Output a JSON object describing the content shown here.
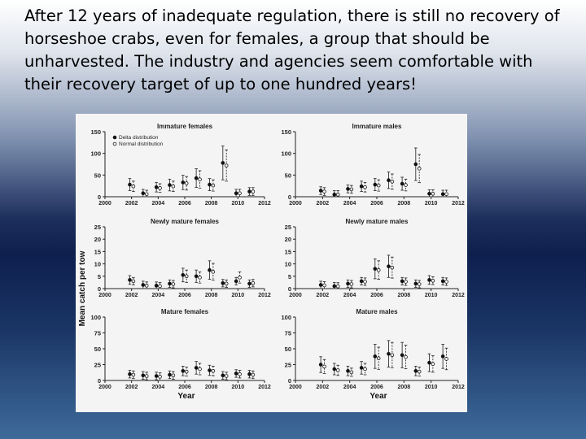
{
  "slide": {
    "text": "After 12 years of inadequate regulation, there is still no recovery of horseshoe crabs, even for  females, a group that should be unharvested.  The industry and agencies seem comfortable with their recovery target of up to one hundred years!"
  },
  "figure": {
    "ylabel": "Mean catch per tow",
    "xlabel": "Year",
    "legend": [
      "Delta distribution",
      "Normal distribution"
    ]
  },
  "chart_data": [
    {
      "type": "scatter",
      "title": "Immature females",
      "ylim": [
        0,
        150
      ],
      "yticks": [
        0,
        50,
        100,
        150
      ],
      "xticks": [
        2000,
        2002,
        2004,
        2006,
        2008,
        2010,
        2012
      ],
      "legend_position": "top-left",
      "series": [
        {
          "name": "Delta distribution",
          "x": [
            2002,
            2003,
            2004,
            2005,
            2006,
            2007,
            2008,
            2009,
            2010,
            2011
          ],
          "y": [
            28,
            8,
            22,
            27,
            33,
            43,
            28,
            78,
            8,
            12
          ]
        },
        {
          "name": "Normal distribution",
          "x": [
            2002,
            2003,
            2004,
            2005,
            2006,
            2007,
            2008,
            2009,
            2010,
            2011
          ],
          "y": [
            24,
            6,
            20,
            24,
            31,
            40,
            26,
            72,
            8,
            12
          ]
        }
      ]
    },
    {
      "type": "scatter",
      "title": "Immature males",
      "ylim": [
        0,
        150
      ],
      "yticks": [
        0,
        50,
        100,
        150
      ],
      "xticks": [
        2000,
        2002,
        2004,
        2006,
        2008,
        2010,
        2012
      ],
      "series": [
        {
          "name": "Delta distribution",
          "x": [
            2002,
            2003,
            2004,
            2005,
            2006,
            2007,
            2008,
            2009,
            2010,
            2011
          ],
          "y": [
            14,
            5,
            18,
            24,
            28,
            38,
            30,
            75,
            7,
            6
          ]
        },
        {
          "name": "Normal distribution",
          "x": [
            2002,
            2003,
            2004,
            2005,
            2006,
            2007,
            2008,
            2009,
            2010,
            2011
          ],
          "y": [
            12,
            5,
            17,
            22,
            26,
            35,
            27,
            65,
            7,
            6
          ]
        }
      ]
    },
    {
      "type": "scatter",
      "title": "Newly mature females",
      "ylim": [
        0,
        25
      ],
      "yticks": [
        0,
        5,
        10,
        15,
        20,
        25
      ],
      "xticks": [
        2000,
        2002,
        2004,
        2006,
        2008,
        2010,
        2012
      ],
      "series": [
        {
          "name": "Delta distribution",
          "x": [
            2002,
            2003,
            2004,
            2005,
            2006,
            2007,
            2008,
            2009,
            2010,
            2011
          ],
          "y": [
            3.5,
            1.5,
            1.2,
            2.0,
            5.5,
            5.0,
            7.5,
            2.2,
            3.0,
            2.0
          ]
        },
        {
          "name": "Normal distribution",
          "x": [
            2002,
            2003,
            2004,
            2005,
            2006,
            2007,
            2008,
            2009,
            2010,
            2011
          ],
          "y": [
            3.0,
            1.2,
            1.0,
            1.8,
            5.0,
            4.5,
            6.8,
            2.0,
            4.5,
            2.2
          ]
        }
      ]
    },
    {
      "type": "scatter",
      "title": "Newly mature males",
      "ylim": [
        0,
        25
      ],
      "yticks": [
        0,
        5,
        10,
        15,
        20,
        25
      ],
      "xticks": [
        2000,
        2002,
        2004,
        2006,
        2008,
        2010,
        2012
      ],
      "series": [
        {
          "name": "Delta distribution",
          "x": [
            2002,
            2003,
            2004,
            2005,
            2006,
            2007,
            2008,
            2009,
            2010,
            2011
          ],
          "y": [
            1.5,
            1.0,
            2.0,
            3.0,
            8.0,
            9.0,
            3.0,
            2.0,
            3.5,
            3.0
          ]
        },
        {
          "name": "Normal distribution",
          "x": [
            2002,
            2003,
            2004,
            2005,
            2006,
            2007,
            2008,
            2009,
            2010,
            2011
          ],
          "y": [
            1.3,
            0.9,
            1.8,
            2.8,
            7.5,
            8.5,
            2.8,
            1.8,
            3.2,
            2.8
          ]
        }
      ]
    },
    {
      "type": "scatter",
      "title": "Mature females",
      "ylim": [
        0,
        100
      ],
      "yticks": [
        0,
        25,
        50,
        75,
        100
      ],
      "xticks": [
        2000,
        2002,
        2004,
        2006,
        2008,
        2010,
        2012
      ],
      "series": [
        {
          "name": "Delta distribution",
          "x": [
            2002,
            2003,
            2004,
            2005,
            2006,
            2007,
            2008,
            2009,
            2010,
            2011
          ],
          "y": [
            10,
            8,
            7,
            9,
            15,
            20,
            16,
            8,
            11,
            10
          ]
        },
        {
          "name": "Normal distribution",
          "x": [
            2002,
            2003,
            2004,
            2005,
            2006,
            2007,
            2008,
            2009,
            2010,
            2011
          ],
          "y": [
            9,
            7,
            6,
            8,
            14,
            18,
            15,
            7,
            10,
            9
          ]
        }
      ]
    },
    {
      "type": "scatter",
      "title": "Mature males",
      "ylim": [
        0,
        100
      ],
      "yticks": [
        0,
        25,
        50,
        75,
        100
      ],
      "xticks": [
        2000,
        2002,
        2004,
        2006,
        2008,
        2010,
        2012
      ],
      "series": [
        {
          "name": "Delta distribution",
          "x": [
            2002,
            2003,
            2004,
            2005,
            2006,
            2007,
            2008,
            2009,
            2010,
            2011
          ],
          "y": [
            25,
            18,
            15,
            20,
            38,
            42,
            40,
            15,
            28,
            38
          ]
        },
        {
          "name": "Normal distribution",
          "x": [
            2002,
            2003,
            2004,
            2005,
            2006,
            2007,
            2008,
            2009,
            2010,
            2011
          ],
          "y": [
            22,
            16,
            13,
            18,
            35,
            40,
            37,
            14,
            26,
            34
          ]
        }
      ]
    }
  ]
}
